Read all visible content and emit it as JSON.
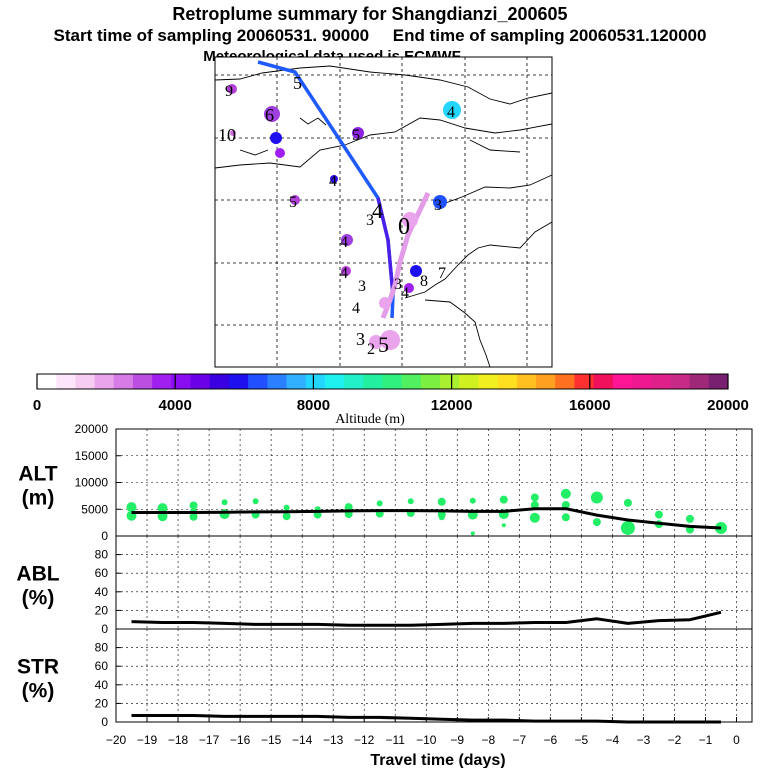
{
  "header": {
    "title": "Retroplume summary for Shangdianzi_200605",
    "line2": "Start time of sampling 20060531. 90000     End time of sampling 20060531.120000",
    "line3": "Meteorological data used is ECMWF"
  },
  "colorbar": {
    "label": "Altitude (m)",
    "tick_labels": [
      "0",
      "4000",
      "8000",
      "12000",
      "16000",
      "20000"
    ],
    "colors": [
      "#ffffff",
      "#fde6fb",
      "#f6ccf2",
      "#eaa4ec",
      "#d77be6",
      "#bd4ee2",
      "#a020f0",
      "#8a0cf0",
      "#6b00e8",
      "#3a00e0",
      "#1f10f0",
      "#2050ff",
      "#2b80ff",
      "#30b0ff",
      "#22d6ff",
      "#1ef0f0",
      "#22f0c8",
      "#22f0a0",
      "#30f080",
      "#50f060",
      "#7cf040",
      "#a8f030",
      "#d0f020",
      "#f0f020",
      "#ffe020",
      "#ffc020",
      "#ffa020",
      "#ff7020",
      "#ff3030",
      "#f0105c",
      "#ff1493",
      "#f01890",
      "#e0208a",
      "#c82a88",
      "#a02878",
      "#7a2070"
    ]
  },
  "map": {
    "labels": [
      {
        "text": "9",
        "c": "#b040d8"
      },
      {
        "text": "5",
        "c": "#2040ff"
      },
      {
        "text": "4",
        "c": "#30b0ff"
      },
      {
        "text": "6",
        "c": "#a040e0"
      },
      {
        "text": "10",
        "c": "#000"
      },
      {
        "text": "5",
        "c": "#8a20e0"
      },
      {
        "text": "4",
        "c": "#3010f0"
      },
      {
        "text": "5",
        "c": "#b040d8"
      },
      {
        "text": "4",
        "c": "#3a00e0"
      },
      {
        "text": "3",
        "c": "#000"
      },
      {
        "text": "0",
        "c": "#000"
      },
      {
        "text": "3",
        "c": "#2050ff"
      },
      {
        "text": "4",
        "c": "#000"
      },
      {
        "text": "4",
        "c": "#000"
      },
      {
        "text": "3",
        "c": "#000"
      },
      {
        "text": "3",
        "c": "#000"
      },
      {
        "text": "8",
        "c": "#000"
      },
      {
        "text": "7",
        "c": "#000"
      },
      {
        "text": "4",
        "c": "#000"
      },
      {
        "text": "4",
        "c": "#000"
      },
      {
        "text": "3",
        "c": "#000"
      },
      {
        "text": "2",
        "c": "#000"
      },
      {
        "text": "5",
        "c": "#000"
      }
    ]
  },
  "chart_data": {
    "type": "line",
    "x_label": "Travel time (days)",
    "x_ticks": [
      "-20",
      "-19",
      "-18",
      "-17",
      "-16",
      "-15",
      "-14",
      "-13",
      "-12",
      "-11",
      "-10",
      "-9",
      "-8",
      "-7",
      "-6",
      "-5",
      "-4",
      "-3",
      "-2",
      "-1",
      "0"
    ],
    "xlim": [
      -20,
      0.5
    ],
    "panels": [
      {
        "id": "ALT",
        "ylabel_line1": "ALT",
        "ylabel_line2": "(m)",
        "ylim": [
          0,
          20000
        ],
        "y_ticks": [
          "20000",
          "15000",
          "10000",
          "5000",
          "0"
        ],
        "x": [
          -19.5,
          -18.5,
          -17.5,
          -16.5,
          -15.5,
          -14.5,
          -13.5,
          -12.5,
          -11.5,
          -10.5,
          -9.5,
          -8.5,
          -7.5,
          -6.5,
          -5.5,
          -4.5,
          -3.5,
          -2.5,
          -1.5,
          -0.5
        ],
        "y": [
          4400,
          4400,
          4400,
          4450,
          4500,
          4550,
          4600,
          4700,
          4750,
          4750,
          4700,
          4600,
          4600,
          5100,
          5100,
          3900,
          3000,
          2400,
          1800,
          1500
        ],
        "scatter": [
          {
            "x": -19.5,
            "y": 5400,
            "r": 5
          },
          {
            "x": -19.5,
            "y": 3800,
            "r": 5
          },
          {
            "x": -18.5,
            "y": 5200,
            "r": 5
          },
          {
            "x": -18.5,
            "y": 3700,
            "r": 5
          },
          {
            "x": -17.5,
            "y": 5700,
            "r": 4
          },
          {
            "x": -17.5,
            "y": 4400,
            "r": 4
          },
          {
            "x": -17.5,
            "y": 3600,
            "r": 4
          },
          {
            "x": -16.5,
            "y": 6300,
            "r": 3
          },
          {
            "x": -16.5,
            "y": 4100,
            "r": 5
          },
          {
            "x": -15.5,
            "y": 6500,
            "r": 3
          },
          {
            "x": -15.5,
            "y": 4000,
            "r": 4
          },
          {
            "x": -14.5,
            "y": 5300,
            "r": 3
          },
          {
            "x": -14.5,
            "y": 3700,
            "r": 4
          },
          {
            "x": -13.5,
            "y": 5000,
            "r": 3
          },
          {
            "x": -13.5,
            "y": 4000,
            "r": 4
          },
          {
            "x": -12.5,
            "y": 5400,
            "r": 4
          },
          {
            "x": -12.5,
            "y": 4100,
            "r": 4
          },
          {
            "x": -11.5,
            "y": 6100,
            "r": 3
          },
          {
            "x": -11.5,
            "y": 4200,
            "r": 4
          },
          {
            "x": -10.5,
            "y": 6500,
            "r": 3
          },
          {
            "x": -10.5,
            "y": 4300,
            "r": 4
          },
          {
            "x": -9.5,
            "y": 6400,
            "r": 4
          },
          {
            "x": -9.5,
            "y": 4000,
            "r": 4
          },
          {
            "x": -9.5,
            "y": 3500,
            "r": 3
          },
          {
            "x": -8.5,
            "y": 6600,
            "r": 3
          },
          {
            "x": -8.5,
            "y": 4000,
            "r": 5
          },
          {
            "x": -8.5,
            "y": 500,
            "r": 2
          },
          {
            "x": -7.5,
            "y": 6800,
            "r": 4
          },
          {
            "x": -7.5,
            "y": 4100,
            "r": 5
          },
          {
            "x": -7.5,
            "y": 2000,
            "r": 2
          },
          {
            "x": -6.5,
            "y": 7200,
            "r": 4
          },
          {
            "x": -6.5,
            "y": 5800,
            "r": 4
          },
          {
            "x": -6.5,
            "y": 3400,
            "r": 5
          },
          {
            "x": -5.5,
            "y": 7900,
            "r": 5
          },
          {
            "x": -5.5,
            "y": 5800,
            "r": 4
          },
          {
            "x": -5.5,
            "y": 3500,
            "r": 4
          },
          {
            "x": -4.5,
            "y": 7200,
            "r": 6
          },
          {
            "x": -4.5,
            "y": 2600,
            "r": 4
          },
          {
            "x": -3.5,
            "y": 6200,
            "r": 4
          },
          {
            "x": -3.5,
            "y": 1500,
            "r": 7
          },
          {
            "x": -2.5,
            "y": 4000,
            "r": 4
          },
          {
            "x": -2.5,
            "y": 2200,
            "r": 4
          },
          {
            "x": -1.5,
            "y": 3200,
            "r": 4
          },
          {
            "x": -1.5,
            "y": 1200,
            "r": 4
          },
          {
            "x": -0.5,
            "y": 1500,
            "r": 6
          }
        ]
      },
      {
        "id": "ABL",
        "ylabel_line1": "ABL",
        "ylabel_line2": "(%)",
        "ylim": [
          0,
          100
        ],
        "y_ticks": [
          "80",
          "60",
          "40",
          "20",
          "0"
        ],
        "x": [
          -19.5,
          -18.5,
          -17.5,
          -16.5,
          -15.5,
          -14.5,
          -13.5,
          -12.5,
          -11.5,
          -10.5,
          -9.5,
          -8.5,
          -7.5,
          -6.5,
          -5.5,
          -4.5,
          -3.5,
          -2.5,
          -1.5,
          -0.5
        ],
        "y": [
          8,
          7,
          7,
          6,
          5,
          5,
          5,
          4,
          4,
          4,
          5,
          6,
          6,
          7,
          7,
          11,
          6,
          9,
          10,
          18
        ]
      },
      {
        "id": "STR",
        "ylabel_line1": "STR",
        "ylabel_line2": "(%)",
        "ylim": [
          0,
          100
        ],
        "y_ticks": [
          "80",
          "60",
          "40",
          "20",
          "0"
        ],
        "x": [
          -19.5,
          -18.5,
          -17.5,
          -16.5,
          -15.5,
          -14.5,
          -13.5,
          -12.5,
          -11.5,
          -10.5,
          -9.5,
          -8.5,
          -7.5,
          -6.5,
          -5.5,
          -4.5,
          -3.5,
          -2.5,
          -1.5,
          -0.5
        ],
        "y": [
          7,
          7,
          7,
          6,
          6,
          6,
          6,
          5,
          5,
          4,
          3,
          2,
          2,
          1,
          1,
          1,
          0,
          0,
          0,
          0
        ]
      }
    ]
  }
}
